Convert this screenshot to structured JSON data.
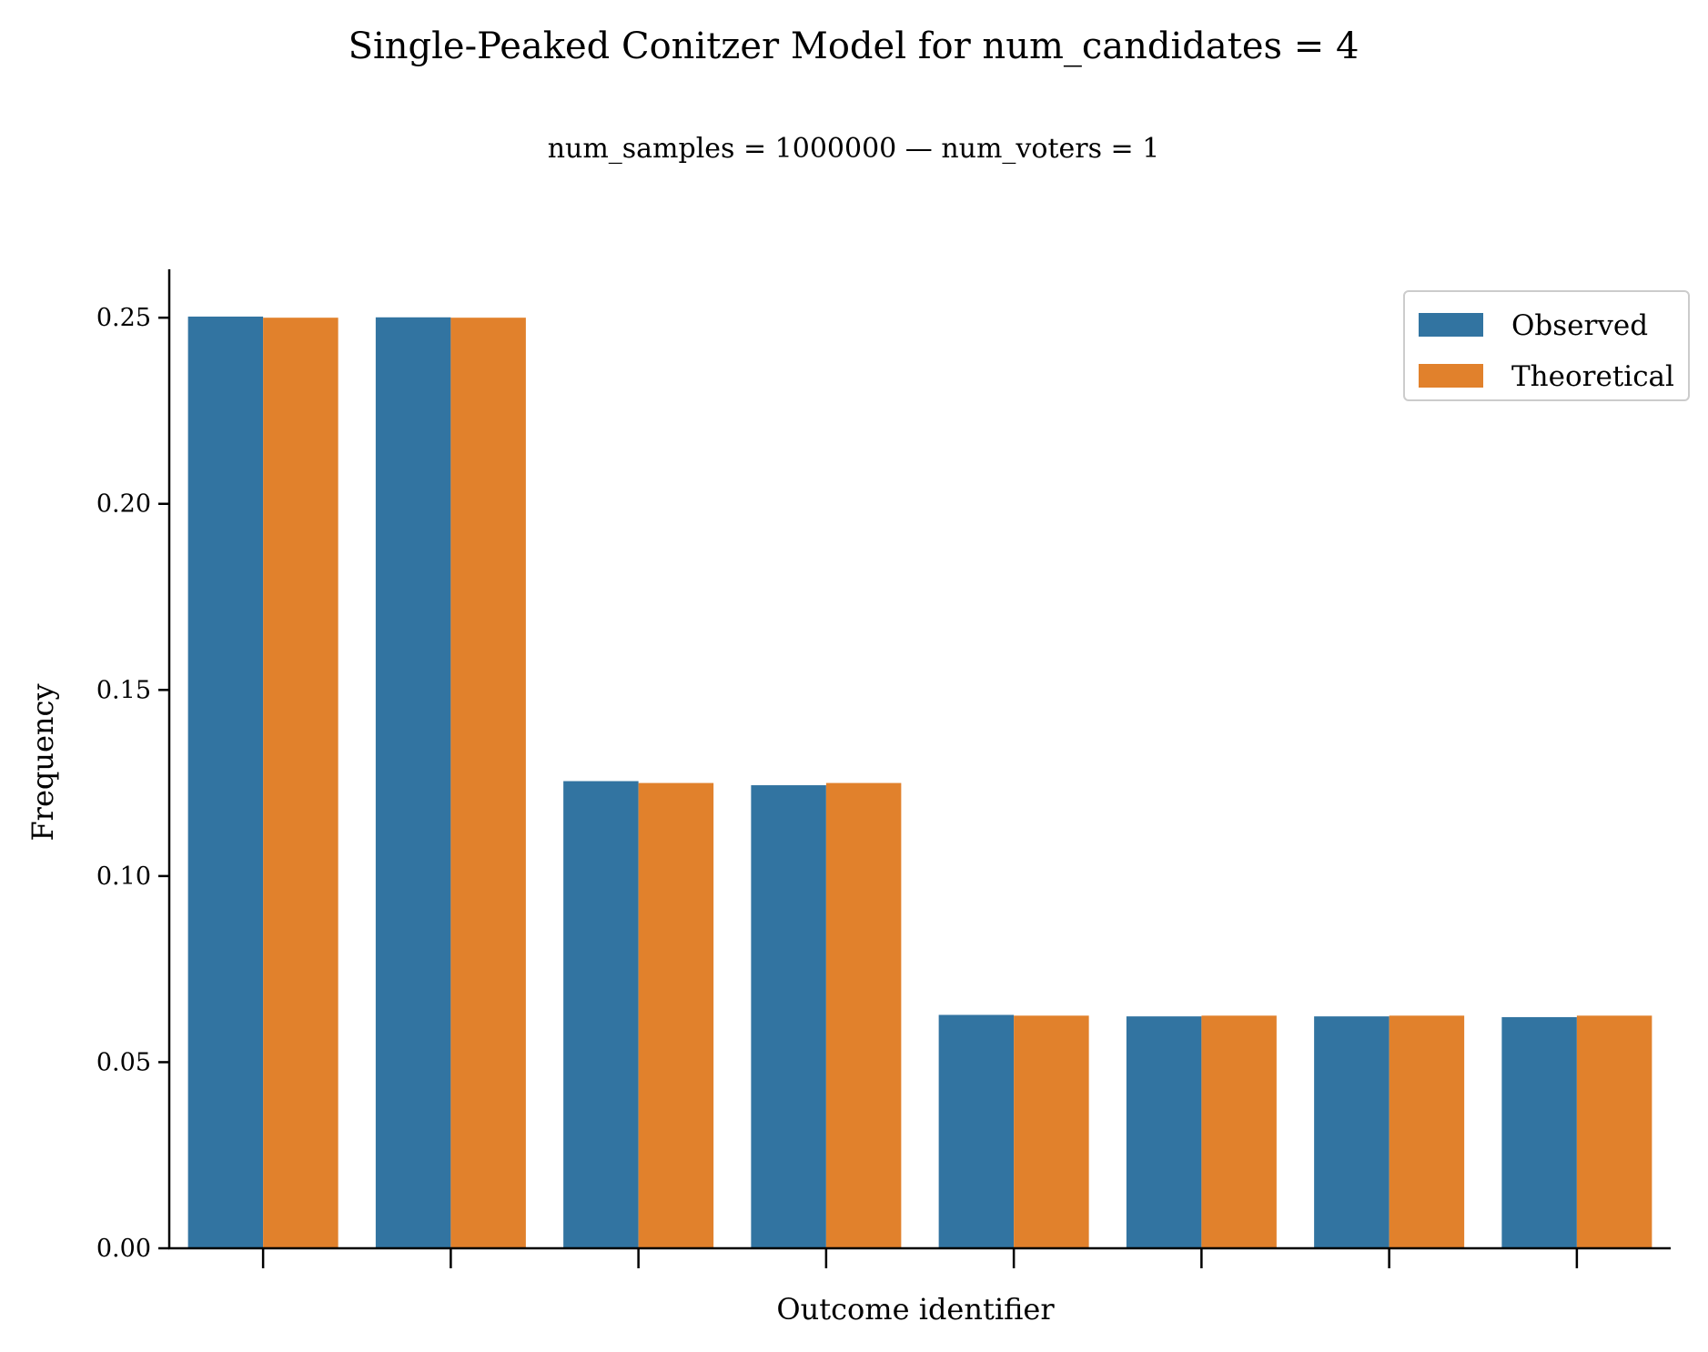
{
  "chart_data": {
    "type": "bar",
    "title": "Single-Peaked Conitzer Model for num_candidates = 4",
    "subtitle": "num_samples = 1000000   —   num_voters = 1",
    "xlabel": "Outcome identifier",
    "ylabel": "Frequency",
    "ylim": [
      0,
      0.263
    ],
    "yticks": [
      "0.00",
      "0.05",
      "0.10",
      "0.15",
      "0.20",
      "0.25"
    ],
    "ytick_values": [
      0,
      0.05,
      0.1,
      0.15,
      0.2,
      0.25
    ],
    "categories": [
      "",
      "",
      "",
      "",
      "",
      "",
      "",
      ""
    ],
    "series": [
      {
        "name": "Observed",
        "color": "#3274a1",
        "values": [
          0.2503,
          0.2501,
          0.1255,
          0.1244,
          0.0627,
          0.0623,
          0.0623,
          0.0621
        ]
      },
      {
        "name": "Theoretical",
        "color": "#e1812c",
        "values": [
          0.25,
          0.25,
          0.125,
          0.125,
          0.0625,
          0.0625,
          0.0625,
          0.0625
        ]
      }
    ],
    "grid": false,
    "legend_position": "top-right"
  }
}
